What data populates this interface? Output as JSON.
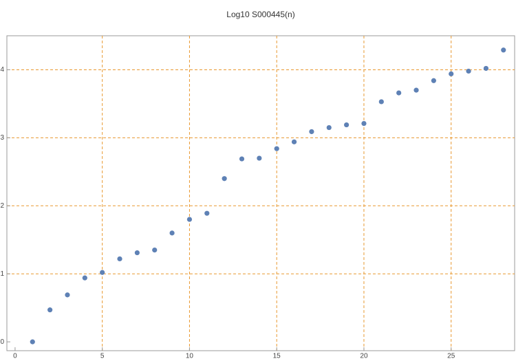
{
  "chart_data": {
    "type": "scatter",
    "title": "Log10 S000445(n)",
    "x": [
      1,
      2,
      3,
      4,
      5,
      6,
      7,
      8,
      9,
      10,
      11,
      12,
      13,
      14,
      15,
      16,
      17,
      18,
      19,
      20,
      21,
      22,
      23,
      24,
      25,
      26,
      27,
      28
    ],
    "series": [
      {
        "color": "#5e81b5",
        "values": [
          0,
          0.47,
          0.69,
          0.94,
          1.02,
          1.22,
          1.31,
          1.35,
          1.6,
          1.8,
          1.89,
          2.4,
          2.69,
          2.7,
          2.84,
          2.94,
          3.09,
          3.15,
          3.19,
          3.21,
          3.53,
          3.66,
          3.7,
          3.84,
          3.94,
          3.98,
          4.02,
          4.29
        ]
      }
    ],
    "xlim": [
      -0.47,
      28.64
    ],
    "ylim": [
      -0.13,
      4.5
    ],
    "xticks": [
      0,
      5,
      10,
      15,
      20,
      25
    ],
    "yticks": [
      0,
      1,
      2,
      3,
      4
    ],
    "xgrid": [
      5,
      10,
      15,
      20,
      25
    ],
    "ygrid": [
      1,
      2,
      3,
      4
    ],
    "grid_color": "#e8982e"
  }
}
